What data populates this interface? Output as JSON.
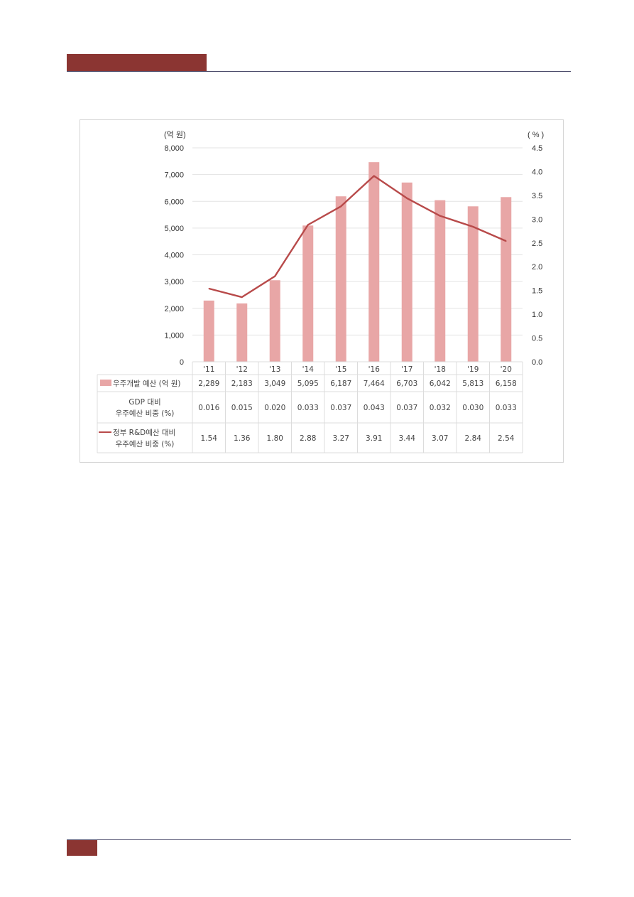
{
  "chart_data": {
    "type": "bar",
    "categories": [
      "'11",
      "'12",
      "'13",
      "'14",
      "'15",
      "'16",
      "'17",
      "'18",
      "'19",
      "'20"
    ],
    "y_left_unit": "(억 원)",
    "y_right_unit": "( % )",
    "y_left_ticks": [
      "8,000",
      "7,000",
      "6,000",
      "5,000",
      "4,000",
      "3,000",
      "2,000",
      "1,000",
      "0"
    ],
    "y_right_ticks": [
      "4.5",
      "4.0",
      "3.5",
      "3.0",
      "2.5",
      "2.0",
      "1.5",
      "1.0",
      "0.5",
      "0.0"
    ],
    "ylim_left": [
      0,
      8000
    ],
    "ylim_right": [
      0,
      4.5
    ],
    "grid": true,
    "series": [
      {
        "name": "우주개발 예산 (억 원)",
        "type": "bar",
        "axis": "left",
        "color": "#e8a6a6",
        "values": [
          2289,
          2183,
          3049,
          5095,
          6187,
          7464,
          6703,
          6042,
          5813,
          6158
        ],
        "labels": [
          "2,289",
          "2,183",
          "3,049",
          "5,095",
          "6,187",
          "7,464",
          "6,703",
          "6,042",
          "5,813",
          "6,158"
        ]
      },
      {
        "name_lines": [
          "GDP 대비",
          "우주예산 비중 (%)"
        ],
        "type": "table-only",
        "values": [
          0.016,
          0.015,
          0.02,
          0.033,
          0.037,
          0.043,
          0.037,
          0.032,
          0.03,
          0.033
        ],
        "labels": [
          "0.016",
          "0.015",
          "0.020",
          "0.033",
          "0.037",
          "0.043",
          "0.037",
          "0.032",
          "0.030",
          "0.033"
        ]
      },
      {
        "name_lines": [
          "정부 R&D예산 대비",
          "우주예산 비중 (%)"
        ],
        "type": "line",
        "axis": "right",
        "color": "#b84a4a",
        "values": [
          1.54,
          1.36,
          1.8,
          2.88,
          3.27,
          3.91,
          3.44,
          3.07,
          2.84,
          2.54
        ],
        "labels": [
          "1.54",
          "1.36",
          "1.80",
          "2.88",
          "3.27",
          "3.91",
          "3.44",
          "3.07",
          "2.84",
          "2.54"
        ]
      }
    ]
  }
}
